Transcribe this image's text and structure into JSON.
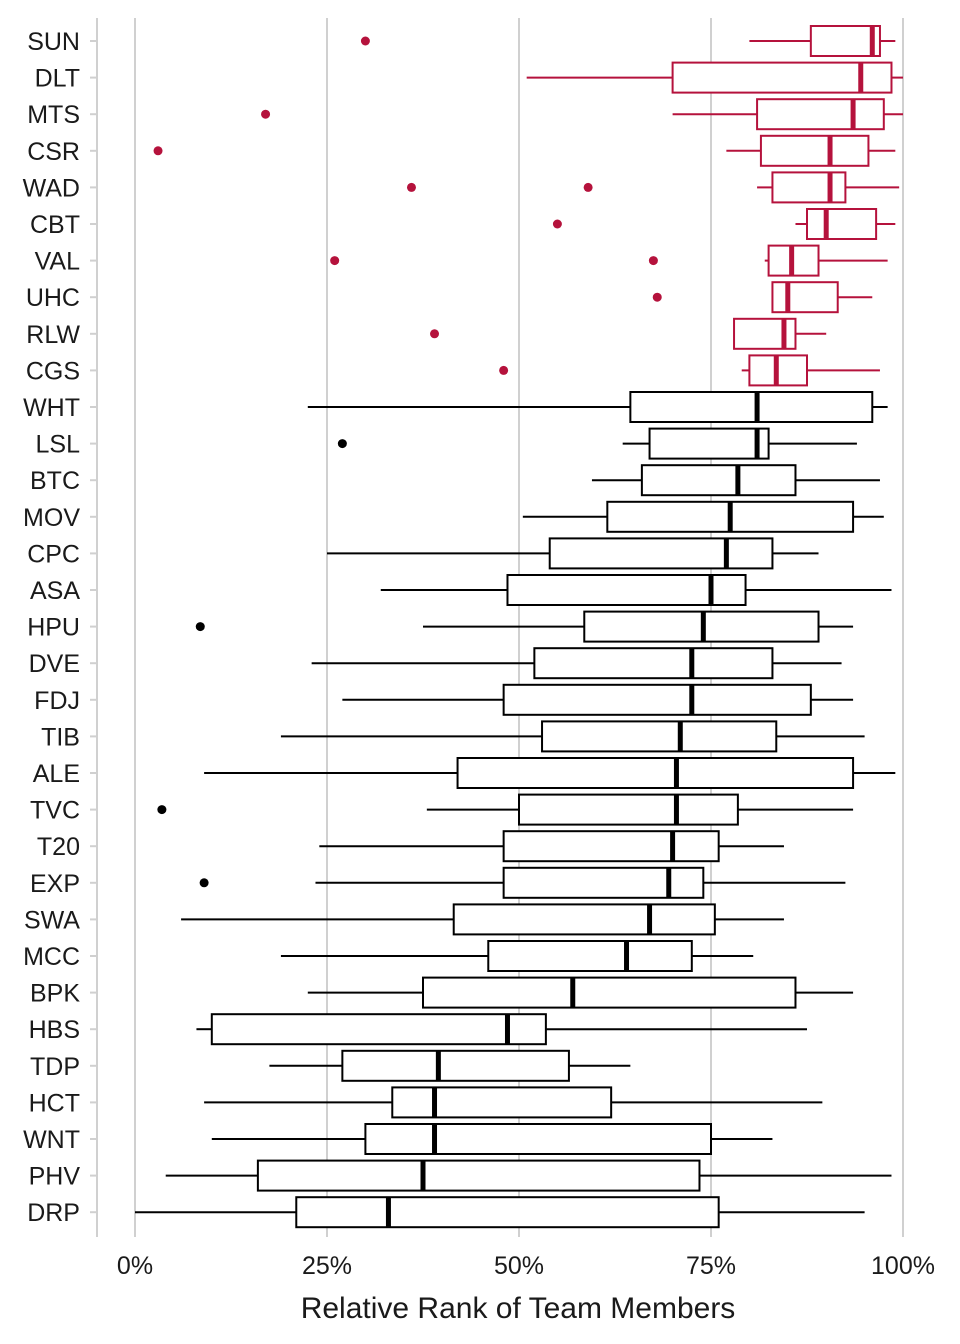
{
  "chart_data": {
    "type": "box",
    "title": "",
    "xlabel": "Relative Rank of Team Members",
    "ylabel": "",
    "xlim": [
      0,
      1
    ],
    "x_ticks": [
      0,
      0.25,
      0.5,
      0.75,
      1.0
    ],
    "x_tick_labels": [
      "0%",
      "25%",
      "50%",
      "75%",
      "100%"
    ],
    "grid": "vertical major gridlines",
    "colors": {
      "highlight": "#b5123c",
      "default": "#000000",
      "grid": "#d0d0d0"
    },
    "series": [
      {
        "team": "SUN",
        "highlight": true,
        "whisker_low": 0.8,
        "q1": 0.88,
        "median": 0.96,
        "q3": 0.97,
        "whisker_high": 0.99,
        "outliers": [
          0.3
        ]
      },
      {
        "team": "DLT",
        "highlight": true,
        "whisker_low": 0.51,
        "q1": 0.7,
        "median": 0.945,
        "q3": 0.985,
        "whisker_high": 1.0,
        "outliers": []
      },
      {
        "team": "MTS",
        "highlight": true,
        "whisker_low": 0.7,
        "q1": 0.81,
        "median": 0.935,
        "q3": 0.975,
        "whisker_high": 1.0,
        "outliers": [
          0.17
        ]
      },
      {
        "team": "CSR",
        "highlight": true,
        "whisker_low": 0.77,
        "q1": 0.815,
        "median": 0.905,
        "q3": 0.955,
        "whisker_high": 0.99,
        "outliers": [
          0.03
        ]
      },
      {
        "team": "WAD",
        "highlight": true,
        "whisker_low": 0.81,
        "q1": 0.83,
        "median": 0.905,
        "q3": 0.925,
        "whisker_high": 0.995,
        "outliers": [
          0.36,
          0.59
        ]
      },
      {
        "team": "CBT",
        "highlight": true,
        "whisker_low": 0.86,
        "q1": 0.875,
        "median": 0.9,
        "q3": 0.965,
        "whisker_high": 0.99,
        "outliers": [
          0.55
        ]
      },
      {
        "team": "VAL",
        "highlight": true,
        "whisker_low": 0.82,
        "q1": 0.825,
        "median": 0.855,
        "q3": 0.89,
        "whisker_high": 0.98,
        "outliers": [
          0.26,
          0.675
        ]
      },
      {
        "team": "UHC",
        "highlight": true,
        "whisker_low": 0.83,
        "q1": 0.83,
        "median": 0.85,
        "q3": 0.915,
        "whisker_high": 0.96,
        "outliers": [
          0.68
        ]
      },
      {
        "team": "RLW",
        "highlight": true,
        "whisker_low": 0.78,
        "q1": 0.78,
        "median": 0.845,
        "q3": 0.86,
        "whisker_high": 0.9,
        "outliers": [
          0.39
        ]
      },
      {
        "team": "CGS",
        "highlight": true,
        "whisker_low": 0.79,
        "q1": 0.8,
        "median": 0.835,
        "q3": 0.875,
        "whisker_high": 0.97,
        "outliers": [
          0.48
        ]
      },
      {
        "team": "WHT",
        "highlight": false,
        "whisker_low": 0.225,
        "q1": 0.645,
        "median": 0.81,
        "q3": 0.96,
        "whisker_high": 0.98,
        "outliers": []
      },
      {
        "team": "LSL",
        "highlight": false,
        "whisker_low": 0.635,
        "q1": 0.67,
        "median": 0.81,
        "q3": 0.825,
        "whisker_high": 0.94,
        "outliers": [
          0.27
        ]
      },
      {
        "team": "BTC",
        "highlight": false,
        "whisker_low": 0.595,
        "q1": 0.66,
        "median": 0.785,
        "q3": 0.86,
        "whisker_high": 0.97,
        "outliers": []
      },
      {
        "team": "MOV",
        "highlight": false,
        "whisker_low": 0.505,
        "q1": 0.615,
        "median": 0.775,
        "q3": 0.935,
        "whisker_high": 0.975,
        "outliers": []
      },
      {
        "team": "CPC",
        "highlight": false,
        "whisker_low": 0.25,
        "q1": 0.54,
        "median": 0.77,
        "q3": 0.83,
        "whisker_high": 0.89,
        "outliers": []
      },
      {
        "team": "ASA",
        "highlight": false,
        "whisker_low": 0.32,
        "q1": 0.485,
        "median": 0.75,
        "q3": 0.795,
        "whisker_high": 0.985,
        "outliers": []
      },
      {
        "team": "HPU",
        "highlight": false,
        "whisker_low": 0.375,
        "q1": 0.585,
        "median": 0.74,
        "q3": 0.89,
        "whisker_high": 0.935,
        "outliers": [
          0.085
        ]
      },
      {
        "team": "DVE",
        "highlight": false,
        "whisker_low": 0.23,
        "q1": 0.52,
        "median": 0.725,
        "q3": 0.83,
        "whisker_high": 0.92,
        "outliers": []
      },
      {
        "team": "FDJ",
        "highlight": false,
        "whisker_low": 0.27,
        "q1": 0.48,
        "median": 0.725,
        "q3": 0.88,
        "whisker_high": 0.935,
        "outliers": []
      },
      {
        "team": "TIB",
        "highlight": false,
        "whisker_low": 0.19,
        "q1": 0.53,
        "median": 0.71,
        "q3": 0.835,
        "whisker_high": 0.95,
        "outliers": []
      },
      {
        "team": "ALE",
        "highlight": false,
        "whisker_low": 0.09,
        "q1": 0.42,
        "median": 0.705,
        "q3": 0.935,
        "whisker_high": 0.99,
        "outliers": []
      },
      {
        "team": "TVC",
        "highlight": false,
        "whisker_low": 0.38,
        "q1": 0.5,
        "median": 0.705,
        "q3": 0.785,
        "whisker_high": 0.935,
        "outliers": [
          0.035
        ]
      },
      {
        "team": "T20",
        "highlight": false,
        "whisker_low": 0.24,
        "q1": 0.48,
        "median": 0.7,
        "q3": 0.76,
        "whisker_high": 0.845,
        "outliers": []
      },
      {
        "team": "EXP",
        "highlight": false,
        "whisker_low": 0.235,
        "q1": 0.48,
        "median": 0.695,
        "q3": 0.74,
        "whisker_high": 0.925,
        "outliers": [
          0.09
        ]
      },
      {
        "team": "SWA",
        "highlight": false,
        "whisker_low": 0.06,
        "q1": 0.415,
        "median": 0.67,
        "q3": 0.755,
        "whisker_high": 0.845,
        "outliers": []
      },
      {
        "team": "MCC",
        "highlight": false,
        "whisker_low": 0.19,
        "q1": 0.46,
        "median": 0.64,
        "q3": 0.725,
        "whisker_high": 0.805,
        "outliers": []
      },
      {
        "team": "BPK",
        "highlight": false,
        "whisker_low": 0.225,
        "q1": 0.375,
        "median": 0.57,
        "q3": 0.86,
        "whisker_high": 0.935,
        "outliers": []
      },
      {
        "team": "HBS",
        "highlight": false,
        "whisker_low": 0.08,
        "q1": 0.1,
        "median": 0.485,
        "q3": 0.535,
        "whisker_high": 0.875,
        "outliers": []
      },
      {
        "team": "TDP",
        "highlight": false,
        "whisker_low": 0.175,
        "q1": 0.27,
        "median": 0.395,
        "q3": 0.565,
        "whisker_high": 0.645,
        "outliers": []
      },
      {
        "team": "HCT",
        "highlight": false,
        "whisker_low": 0.09,
        "q1": 0.335,
        "median": 0.39,
        "q3": 0.62,
        "whisker_high": 0.895,
        "outliers": []
      },
      {
        "team": "WNT",
        "highlight": false,
        "whisker_low": 0.1,
        "q1": 0.3,
        "median": 0.39,
        "q3": 0.75,
        "whisker_high": 0.83,
        "outliers": []
      },
      {
        "team": "PHV",
        "highlight": false,
        "whisker_low": 0.04,
        "q1": 0.16,
        "median": 0.375,
        "q3": 0.735,
        "whisker_high": 0.985,
        "outliers": []
      },
      {
        "team": "DRP",
        "highlight": false,
        "whisker_low": 0.0,
        "q1": 0.21,
        "median": 0.33,
        "q3": 0.76,
        "whisker_high": 0.95,
        "outliers": []
      }
    ]
  }
}
